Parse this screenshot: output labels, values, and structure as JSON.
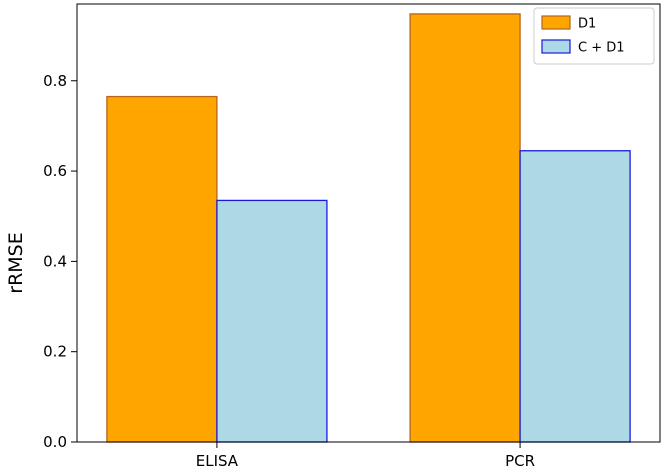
{
  "chart_data": {
    "type": "bar",
    "title": "",
    "xlabel": "",
    "ylabel": "rRMSE",
    "categories": [
      "ELISA",
      "PCR"
    ],
    "series": [
      {
        "name": "D1",
        "values": [
          0.765,
          0.948
        ],
        "color": "#ffa500",
        "edge_color": "#b5651d"
      },
      {
        "name": "C + D1",
        "values": [
          0.535,
          0.645
        ],
        "color": "#add8e6",
        "edge_color": "#1a1adb"
      }
    ],
    "ylim": [
      0,
      0.97
    ],
    "yticks": [
      "0.0",
      "0.2",
      "0.4",
      "0.6",
      "0.8"
    ],
    "grid": false,
    "legend_position": "top-right"
  }
}
